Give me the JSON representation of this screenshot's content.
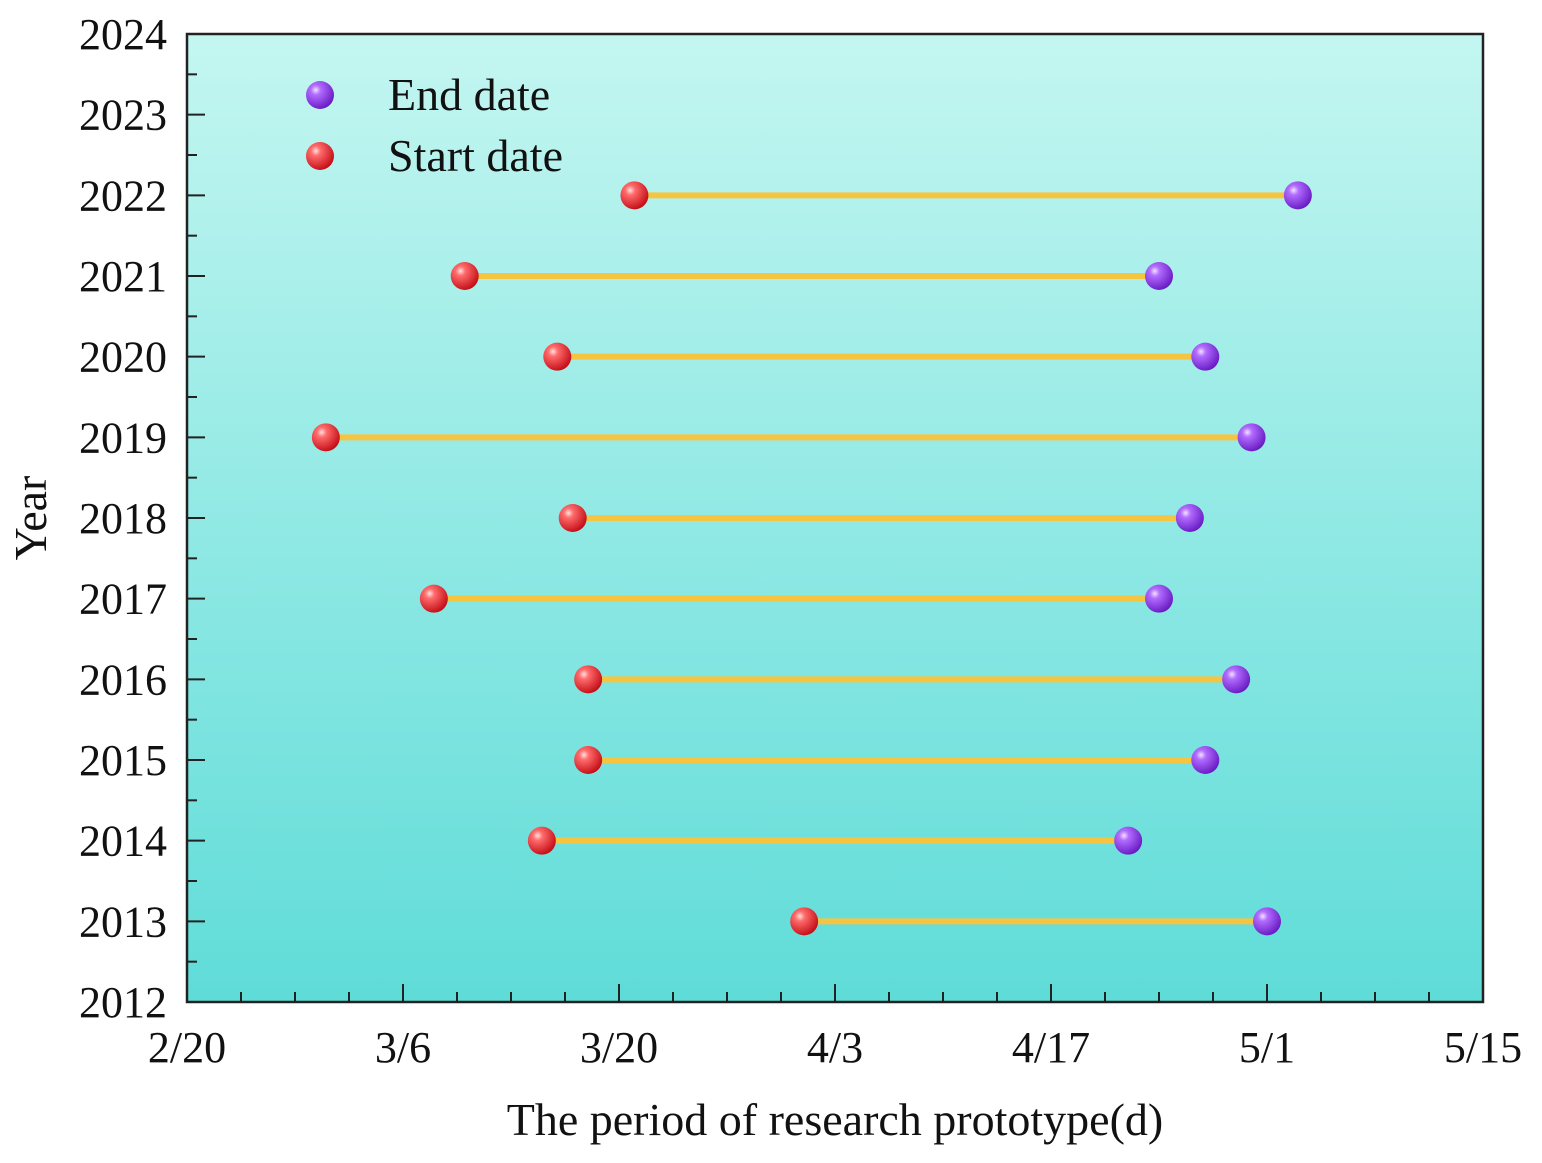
{
  "chart_data": {
    "type": "dumbbell",
    "title": "",
    "xlabel": "The period of research prototype(d)",
    "ylabel": "Year",
    "x_unit": "day of year (Feb 20 = day 51)",
    "xlim": [
      51,
      135
    ],
    "ylim": [
      2012,
      2024
    ],
    "x_ticks": [
      {
        "value": 51,
        "label": "2/20"
      },
      {
        "value": 65,
        "label": "3/6"
      },
      {
        "value": 79,
        "label": "3/20"
      },
      {
        "value": 93,
        "label": "4/3"
      },
      {
        "value": 107,
        "label": "4/17"
      },
      {
        "value": 121,
        "label": "5/1"
      },
      {
        "value": 135,
        "label": "5/15"
      }
    ],
    "y_ticks": [
      2012,
      2013,
      2014,
      2015,
      2016,
      2017,
      2018,
      2019,
      2020,
      2021,
      2022,
      2023,
      2024
    ],
    "legend": {
      "position": "top-left",
      "entries": [
        {
          "label": "End date",
          "color": "#9b3cf0"
        },
        {
          "label": "Start date",
          "color": "#e8202a"
        }
      ]
    },
    "series": [
      {
        "name": "Start date",
        "color": "#e8202a"
      },
      {
        "name": "End date",
        "color": "#9b3cf0"
      }
    ],
    "connector_color": "#f5c542",
    "background_gradient": [
      "#c4f6f1",
      "#5fdcd8"
    ],
    "rows": [
      {
        "year": 2022,
        "start": 80,
        "end": 123
      },
      {
        "year": 2021,
        "start": 69,
        "end": 114
      },
      {
        "year": 2020,
        "start": 75,
        "end": 117
      },
      {
        "year": 2019,
        "start": 60,
        "end": 120
      },
      {
        "year": 2018,
        "start": 76,
        "end": 116
      },
      {
        "year": 2017,
        "start": 67,
        "end": 114
      },
      {
        "year": 2016,
        "start": 77,
        "end": 119
      },
      {
        "year": 2015,
        "start": 77,
        "end": 117
      },
      {
        "year": 2014,
        "start": 74,
        "end": 112
      },
      {
        "year": 2013,
        "start": 91,
        "end": 121
      }
    ]
  }
}
